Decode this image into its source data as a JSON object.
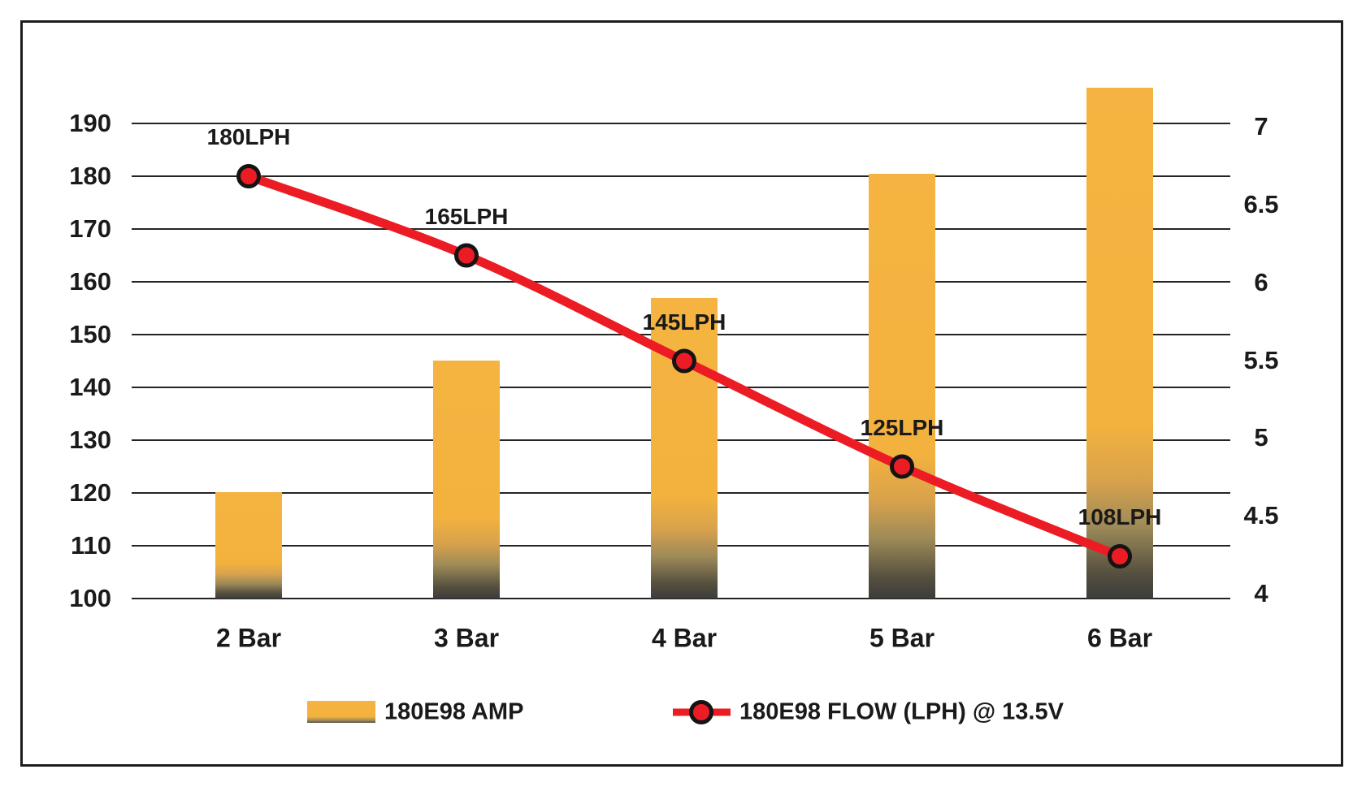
{
  "chart_data": {
    "type": "combo",
    "categories": [
      "2 Bar",
      "3 Bar",
      "4 Bar",
      "5 Bar",
      "6 Bar"
    ],
    "series": [
      {
        "name": "180E98 AMP",
        "type": "bar",
        "axis": "right",
        "unit": "A",
        "values": [
          4.65,
          5.5,
          5.9,
          6.7,
          7.25
        ]
      },
      {
        "name": "180E98 FLOW (LPH) @ 13.5V",
        "type": "line",
        "axis": "left",
        "unit": "LPH",
        "values": [
          180,
          165,
          145,
          125,
          108
        ],
        "point_labels": [
          "180LPH",
          "165LPH",
          "145LPH",
          "125LPH",
          "108LPH"
        ]
      }
    ],
    "left_axis": {
      "ticks": [
        "190",
        "180",
        "170",
        "160",
        "150",
        "140",
        "130",
        "120",
        "110",
        "100"
      ],
      "min": 100,
      "max": 199
    },
    "right_axis": {
      "ticks": [
        "7",
        "6.5",
        "6",
        "5.5",
        "5",
        "4.5",
        "4"
      ],
      "min": 4,
      "max": 7.3
    },
    "grid": "horizontal",
    "legend_position": "bottom"
  },
  "colors": {
    "bar_orange": "#F3B23E",
    "bar_dark_bottom": "#3D3C3A",
    "line_red": "#EC1C24",
    "marker_fill": "#EC1C24",
    "marker_ring": "#141414",
    "grid": "#242424",
    "text": "#1A1A1A",
    "background": "#FFFFFF",
    "border": "#1D1D1D"
  }
}
